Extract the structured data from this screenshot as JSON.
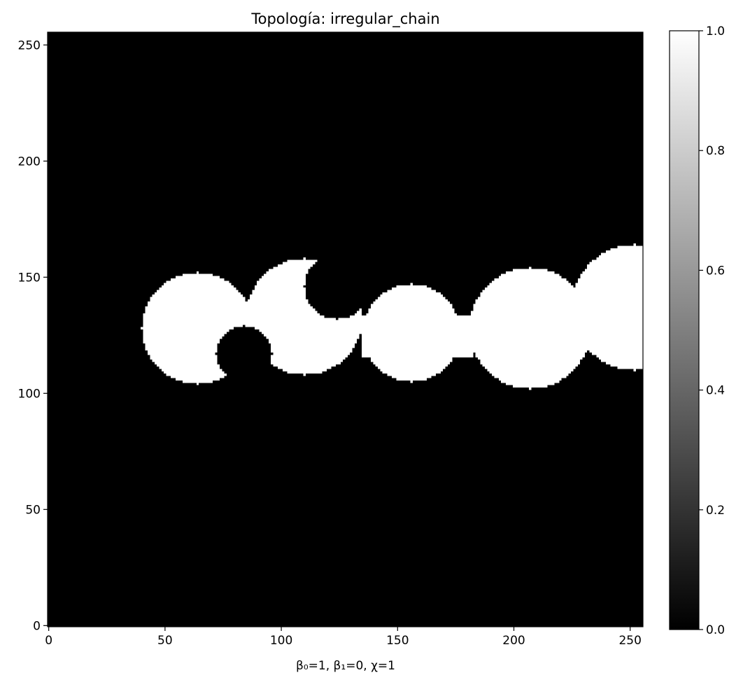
{
  "chart_data": {
    "type": "heatmap",
    "title": "Topología: irregular_chain",
    "xlabel": "β₀=1, β₁=0, χ=1",
    "ylabel": "",
    "xlim": [
      0,
      255
    ],
    "ylim": [
      0,
      255
    ],
    "x_ticks": [
      0,
      50,
      100,
      150,
      200,
      250
    ],
    "y_ticks": [
      0,
      50,
      100,
      150,
      200,
      250
    ],
    "colormap": "gray",
    "colorbar": {
      "range": [
        0.0,
        1.0
      ],
      "ticks": [
        "0.0",
        "0.2",
        "0.4",
        "0.6",
        "0.8",
        "1.0"
      ]
    },
    "image": {
      "size": [
        256,
        256
      ],
      "background_value": 0,
      "foreground_value": 1,
      "white_disks": [
        {
          "cx": 64,
          "cy": 128,
          "r": 24
        },
        {
          "cx": 110,
          "cy": 133,
          "r": 25
        },
        {
          "cx": 156,
          "cy": 126,
          "r": 21
        },
        {
          "cx": 207,
          "cy": 128,
          "r": 26
        },
        {
          "cx": 252,
          "cy": 137,
          "r": 27
        }
      ],
      "bridges": [
        {
          "x": [
            135,
            182
          ],
          "y": [
            116,
            133
          ]
        }
      ],
      "black_holes": [
        {
          "cx": 84,
          "cy": 117,
          "r": 12
        },
        {
          "cx": 124,
          "cy": 146,
          "r": 14
        }
      ]
    },
    "grid": false
  }
}
